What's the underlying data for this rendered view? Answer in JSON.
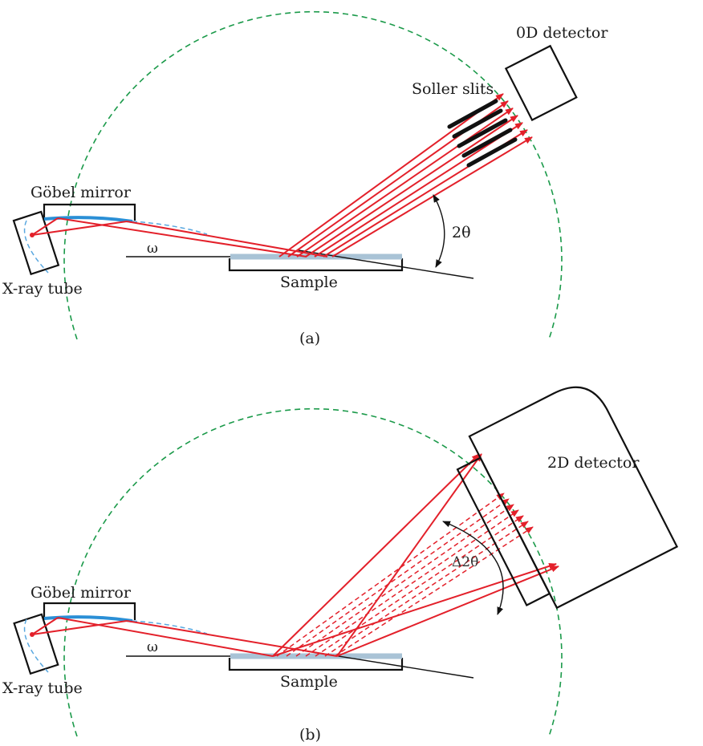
{
  "panel_a": {
    "detector_label": "0D detector",
    "slits_label": "Soller slits",
    "mirror_label": "Göbel mirror",
    "tube_label": "X-ray tube",
    "sample_label": "Sample",
    "omega_label": "ω",
    "two_theta_label": "2θ",
    "caption": "(a)"
  },
  "panel_b": {
    "detector_label": "2D detector",
    "mirror_label": "Göbel mirror",
    "tube_label": "X-ray tube",
    "sample_label": "Sample",
    "omega_label": "ω",
    "delta_two_theta_label": "Δ2θ",
    "caption": "(b)"
  },
  "colors": {
    "beam": "#e3202a",
    "goniometer_circle": "#1b9a4a",
    "mirror": "#2a8fd6",
    "sample": "#a9c3d6",
    "outline": "#111111"
  }
}
